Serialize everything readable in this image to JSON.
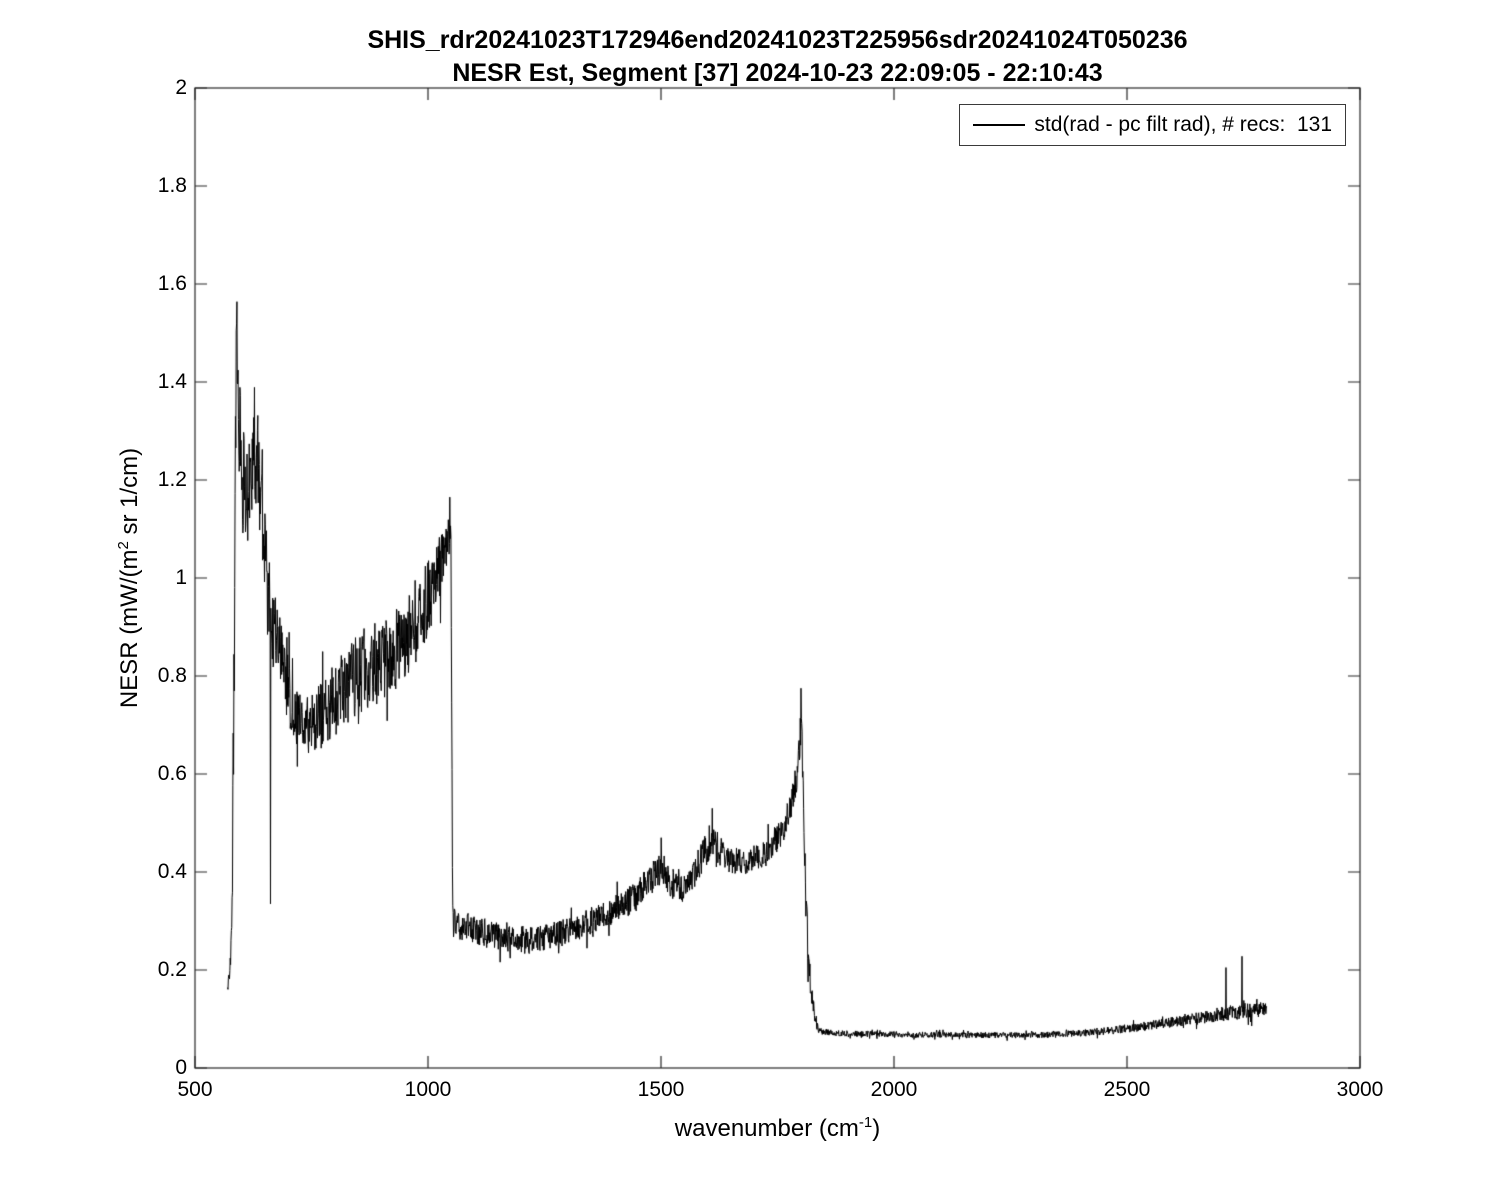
{
  "chart_data": {
    "type": "line",
    "title": "SHIS_rdr20241023T172946end20241023T225956sdr20241024T050236",
    "subtitle": "NESR Est, Segment [37] 2024-10-23 22:09:05 - 22:10:43",
    "xlabel": {
      "pre": "wavenumber (cm",
      "sup": "-1",
      "post": ")"
    },
    "ylabel": {
      "pre": "NESR (mW/(m",
      "sup": "2",
      "post": " sr 1/cm)"
    },
    "xlim": [
      500,
      3000
    ],
    "ylim": [
      0,
      2
    ],
    "xticks": {
      "values": [
        500,
        1000,
        1500,
        2000,
        2500,
        3000
      ],
      "labels": [
        "500",
        "1000",
        "1500",
        "2000",
        "2500",
        "3000"
      ]
    },
    "yticks": {
      "values": [
        0,
        0.2,
        0.4,
        0.6,
        0.8,
        1,
        1.2,
        1.4,
        1.6,
        1.8,
        2
      ],
      "labels": [
        "0",
        "0.2",
        "0.4",
        "0.6",
        "0.8",
        "1",
        "1.2",
        "1.4",
        "1.6",
        "1.8",
        "2"
      ]
    },
    "grid": false,
    "background": "#ffffff",
    "axis_color": "#262626",
    "line_color": "#000000",
    "legend": {
      "position": "top-right",
      "entries": [
        {
          "label": "std(rad - pc filt rad), # recs:  131",
          "color": "#000000"
        }
      ]
    },
    "series": [
      {
        "name": "std(rad - pc filt rad)",
        "n_records": 131,
        "x_range": [
          570,
          2800
        ],
        "discontinuities": [
          1050,
          1803
        ],
        "envelope_x": [
          570,
          575,
          580,
          585,
          589,
          594,
          600,
          608,
          616,
          624,
          632,
          640,
          648,
          656,
          664,
          672,
          682,
          694,
          706,
          718,
          730,
          745,
          762,
          780,
          800,
          822,
          845,
          868,
          890,
          912,
          935,
          958,
          980,
          1000,
          1018,
          1034,
          1045,
          1049,
          1053,
          1075,
          1105,
          1140,
          1175,
          1210,
          1245,
          1280,
          1315,
          1350,
          1385,
          1415,
          1445,
          1470,
          1490,
          1505,
          1522,
          1545,
          1568,
          1590,
          1608,
          1625,
          1645,
          1670,
          1695,
          1720,
          1745,
          1766,
          1783,
          1794,
          1801,
          1805,
          1811,
          1818,
          1827,
          1840,
          1870,
          1920,
          1980,
          2040,
          2100,
          2160,
          2220,
          2280,
          2340,
          2400,
          2460,
          2520,
          2580,
          2640,
          2690,
          2725,
          2755,
          2780,
          2800
        ],
        "envelope_mean": [
          0.165,
          0.19,
          0.35,
          1.0,
          1.5,
          1.32,
          1.22,
          1.16,
          1.18,
          1.22,
          1.25,
          1.18,
          1.06,
          0.97,
          0.92,
          0.88,
          0.84,
          0.8,
          0.75,
          0.72,
          0.7,
          0.7,
          0.71,
          0.73,
          0.75,
          0.78,
          0.8,
          0.81,
          0.82,
          0.84,
          0.86,
          0.89,
          0.92,
          0.96,
          1.0,
          1.05,
          1.09,
          1.1,
          0.3,
          0.29,
          0.28,
          0.27,
          0.265,
          0.26,
          0.265,
          0.275,
          0.285,
          0.3,
          0.315,
          0.33,
          0.35,
          0.375,
          0.4,
          0.405,
          0.375,
          0.365,
          0.39,
          0.435,
          0.465,
          0.445,
          0.425,
          0.42,
          0.425,
          0.435,
          0.46,
          0.5,
          0.55,
          0.62,
          0.71,
          0.55,
          0.33,
          0.2,
          0.115,
          0.075,
          0.071,
          0.07,
          0.069,
          0.068,
          0.068,
          0.067,
          0.067,
          0.067,
          0.068,
          0.071,
          0.076,
          0.083,
          0.091,
          0.1,
          0.108,
          0.113,
          0.117,
          0.119,
          0.118
        ],
        "envelope_noise": [
          0.008,
          0.02,
          0.1,
          0.16,
          0.15,
          0.13,
          0.12,
          0.11,
          0.12,
          0.12,
          0.11,
          0.1,
          0.1,
          0.095,
          0.09,
          0.085,
          0.08,
          0.075,
          0.065,
          0.06,
          0.055,
          0.06,
          0.065,
          0.07,
          0.075,
          0.08,
          0.085,
          0.08,
          0.08,
          0.08,
          0.085,
          0.09,
          0.085,
          0.08,
          0.07,
          0.06,
          0.05,
          0.045,
          0.032,
          0.032,
          0.03,
          0.03,
          0.028,
          0.028,
          0.026,
          0.026,
          0.027,
          0.028,
          0.028,
          0.03,
          0.032,
          0.032,
          0.032,
          0.032,
          0.03,
          0.028,
          0.03,
          0.035,
          0.038,
          0.032,
          0.028,
          0.028,
          0.028,
          0.028,
          0.03,
          0.034,
          0.036,
          0.04,
          0.045,
          0.09,
          0.06,
          0.04,
          0.02,
          0.007,
          0.006,
          0.006,
          0.006,
          0.006,
          0.006,
          0.006,
          0.006,
          0.006,
          0.006,
          0.007,
          0.008,
          0.009,
          0.01,
          0.012,
          0.014,
          0.016,
          0.018,
          0.016,
          0.014
        ],
        "spikes": [
          {
            "x": 662,
            "y": 0.335
          },
          {
            "x": 1047,
            "y": 1.165
          },
          {
            "x": 1500,
            "y": 0.47
          },
          {
            "x": 1610,
            "y": 0.53
          },
          {
            "x": 1800,
            "y": 0.775
          },
          {
            "x": 2712,
            "y": 0.205
          },
          {
            "x": 2747,
            "y": 0.228
          }
        ]
      }
    ]
  }
}
